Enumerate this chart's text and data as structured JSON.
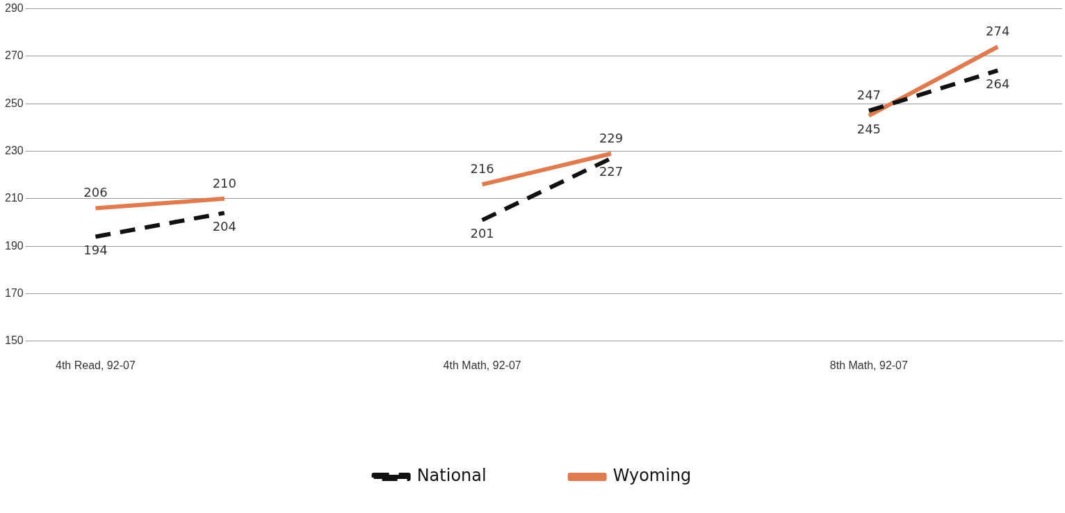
{
  "chart_data": {
    "type": "line",
    "categories": [
      "4th Read, 92-07",
      null,
      null,
      "4th Math, 92-07",
      null,
      null,
      "8th Math, 92-07",
      null
    ],
    "series": [
      {
        "name": "National",
        "color": "#111111",
        "line_style": "dashed",
        "values": [
          194,
          204,
          null,
          201,
          227,
          null,
          247,
          264
        ]
      },
      {
        "name": "Wyoming",
        "color": "#e07a4f",
        "line_style": "solid",
        "values": [
          206,
          210,
          null,
          216,
          229,
          null,
          245,
          274
        ]
      }
    ],
    "ylim": [
      150,
      290
    ],
    "yticks": [
      150,
      170,
      190,
      210,
      230,
      250,
      270,
      290
    ],
    "grid": "y",
    "legend": "bottom",
    "data_labels": true,
    "marker": "none"
  }
}
